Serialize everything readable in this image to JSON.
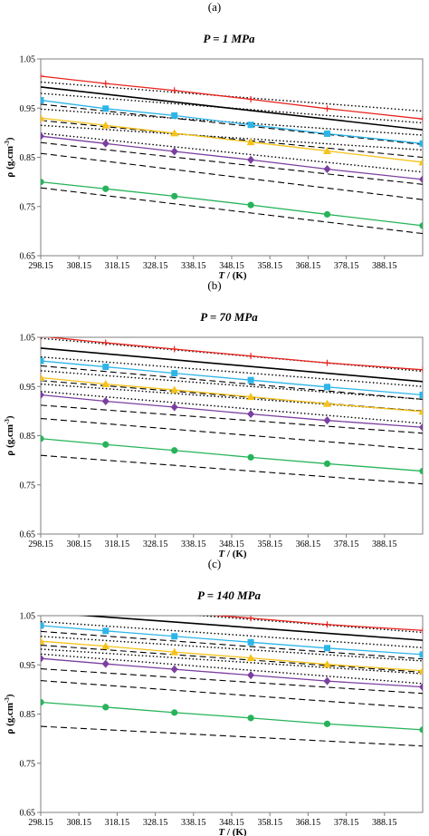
{
  "chart_data": [
    {
      "type": "line",
      "panel_label": "(a)",
      "title": "P = 1 MPa",
      "xlabel": "T / (K)",
      "ylabel": "ρ (g.cm⁻³)",
      "xlim": [
        298.15,
        398.15
      ],
      "ylim": [
        0.65,
        1.05
      ],
      "xticks": [
        298.15,
        308.15,
        318.15,
        328.15,
        338.15,
        348.15,
        358.15,
        368.15,
        378.15,
        388.15
      ],
      "yticks": [
        0.65,
        0.75,
        0.85,
        0.95,
        1.05
      ],
      "grid": false,
      "marker_x": [
        298.15,
        315.15,
        333.15,
        353.15,
        373.15,
        398.15
      ],
      "series": [
        {
          "color": "#e8231e",
          "marker": "plus",
          "values": [
            1.015,
            1.0,
            0.986,
            0.968,
            0.949,
            0.928
          ]
        },
        {
          "color": "#2eb5e8",
          "marker": "square",
          "values": [
            0.966,
            0.949,
            0.935,
            0.916,
            0.898,
            0.878
          ]
        },
        {
          "color": "#f5c21b",
          "marker": "triangle",
          "values": [
            0.93,
            0.915,
            0.899,
            0.881,
            0.863,
            0.84
          ]
        },
        {
          "color": "#7b3fa0",
          "marker": "diamond",
          "values": [
            0.893,
            0.878,
            0.862,
            0.845,
            0.826,
            0.805
          ]
        },
        {
          "color": "#27b35a",
          "marker": "circle",
          "values": [
            0.8,
            0.786,
            0.771,
            0.753,
            0.734,
            0.711
          ]
        }
      ],
      "model_lines": [
        {
          "style": "solid",
          "from": 0.993,
          "to": 0.906
        },
        {
          "style": "dotted",
          "from": 1.003,
          "to": 0.944
        },
        {
          "style": "dotted",
          "from": 0.98,
          "to": 0.92
        },
        {
          "style": "dotted",
          "from": 0.948,
          "to": 0.895
        },
        {
          "style": "dotted",
          "from": 0.915,
          "to": 0.865
        },
        {
          "style": "dotted",
          "from": 0.899,
          "to": 0.82
        },
        {
          "style": "dashed",
          "from": 0.958,
          "to": 0.876
        },
        {
          "style": "dashed",
          "from": 0.925,
          "to": 0.85
        },
        {
          "style": "dashed",
          "from": 0.88,
          "to": 0.795
        },
        {
          "style": "dashed",
          "from": 0.858,
          "to": 0.764
        },
        {
          "style": "dashed",
          "from": 0.788,
          "to": 0.695
        }
      ]
    },
    {
      "type": "line",
      "panel_label": "(b)",
      "title": "P = 70 MPa",
      "xlabel": "T / (K)",
      "ylabel": "ρ (g.cm⁻³)",
      "xlim": [
        298.15,
        398.15
      ],
      "ylim": [
        0.65,
        1.05
      ],
      "xticks": [
        298.15,
        308.15,
        318.15,
        328.15,
        338.15,
        348.15,
        358.15,
        368.15,
        378.15,
        388.15
      ],
      "yticks": [
        0.65,
        0.75,
        0.85,
        0.95,
        1.05
      ],
      "grid": false,
      "marker_x": [
        298.15,
        315.15,
        333.15,
        353.15,
        373.15,
        398.15
      ],
      "series": [
        {
          "color": "#e8231e",
          "marker": "plus",
          "values": [
            1.052,
            1.039,
            1.026,
            1.012,
            0.998,
            0.984
          ]
        },
        {
          "color": "#2eb5e8",
          "marker": "square",
          "values": [
            1.002,
            0.99,
            0.977,
            0.963,
            0.949,
            0.933
          ]
        },
        {
          "color": "#f5c21b",
          "marker": "triangle",
          "values": [
            0.968,
            0.955,
            0.943,
            0.929,
            0.915,
            0.899
          ]
        },
        {
          "color": "#7b3fa0",
          "marker": "diamond",
          "values": [
            0.933,
            0.92,
            0.908,
            0.894,
            0.881,
            0.867
          ]
        },
        {
          "color": "#27b35a",
          "marker": "circle",
          "values": [
            0.844,
            0.832,
            0.82,
            0.806,
            0.793,
            0.778
          ]
        }
      ],
      "model_lines": [
        {
          "style": "solid",
          "from": 1.028,
          "to": 0.96
        },
        {
          "style": "dotted",
          "from": 1.048,
          "to": 0.981
        },
        {
          "style": "dotted",
          "from": 1.01,
          "to": 0.95
        },
        {
          "style": "dotted",
          "from": 0.982,
          "to": 0.924
        },
        {
          "style": "dotted",
          "from": 0.955,
          "to": 0.9
        },
        {
          "style": "dotted",
          "from": 0.94,
          "to": 0.875
        },
        {
          "style": "dashed",
          "from": 0.992,
          "to": 0.924
        },
        {
          "style": "dashed",
          "from": 0.962,
          "to": 0.9
        },
        {
          "style": "dashed",
          "from": 0.912,
          "to": 0.855
        },
        {
          "style": "dashed",
          "from": 0.885,
          "to": 0.822
        },
        {
          "style": "dashed",
          "from": 0.81,
          "to": 0.752
        }
      ]
    },
    {
      "type": "line",
      "panel_label": "(c)",
      "title": "P = 140 MPa",
      "xlabel": "T / (K)",
      "ylabel": "ρ (g.cm⁻³)",
      "xlim": [
        298.15,
        398.15
      ],
      "ylim": [
        0.65,
        1.05
      ],
      "xticks": [
        298.15,
        308.15,
        318.15,
        328.15,
        338.15,
        348.15,
        358.15,
        368.15,
        378.15,
        388.15
      ],
      "yticks": [
        0.65,
        0.75,
        0.85,
        0.95,
        1.05
      ],
      "grid": false,
      "marker_x": [
        298.15,
        315.15,
        333.15,
        353.15,
        373.15,
        398.15
      ],
      "series": [
        {
          "color": "#e8231e",
          "marker": "plus",
          "values": [
            1.08,
            1.069,
            1.057,
            1.045,
            1.032,
            1.02
          ]
        },
        {
          "color": "#2eb5e8",
          "marker": "square",
          "values": [
            1.03,
            1.019,
            1.008,
            0.996,
            0.984,
            0.971
          ]
        },
        {
          "color": "#f5c21b",
          "marker": "triangle",
          "values": [
            0.998,
            0.988,
            0.976,
            0.964,
            0.951,
            0.938
          ]
        },
        {
          "color": "#7b3fa0",
          "marker": "diamond",
          "values": [
            0.963,
            0.952,
            0.941,
            0.929,
            0.917,
            0.905
          ]
        },
        {
          "color": "#27b35a",
          "marker": "circle",
          "values": [
            0.874,
            0.864,
            0.853,
            0.842,
            0.83,
            0.818
          ]
        }
      ],
      "model_lines": [
        {
          "style": "solid",
          "from": 1.057,
          "to": 1.0
        },
        {
          "style": "dotted",
          "from": 1.075,
          "to": 1.016
        },
        {
          "style": "dotted",
          "from": 1.038,
          "to": 0.985
        },
        {
          "style": "dotted",
          "from": 1.008,
          "to": 0.958
        },
        {
          "style": "dotted",
          "from": 0.982,
          "to": 0.932
        },
        {
          "style": "dotted",
          "from": 0.972,
          "to": 0.912
        },
        {
          "style": "dashed",
          "from": 1.018,
          "to": 0.962
        },
        {
          "style": "dashed",
          "from": 0.99,
          "to": 0.935
        },
        {
          "style": "dashed",
          "from": 0.942,
          "to": 0.892
        },
        {
          "style": "dashed",
          "from": 0.918,
          "to": 0.862
        },
        {
          "style": "dashed",
          "from": 0.825,
          "to": 0.785
        }
      ]
    }
  ]
}
